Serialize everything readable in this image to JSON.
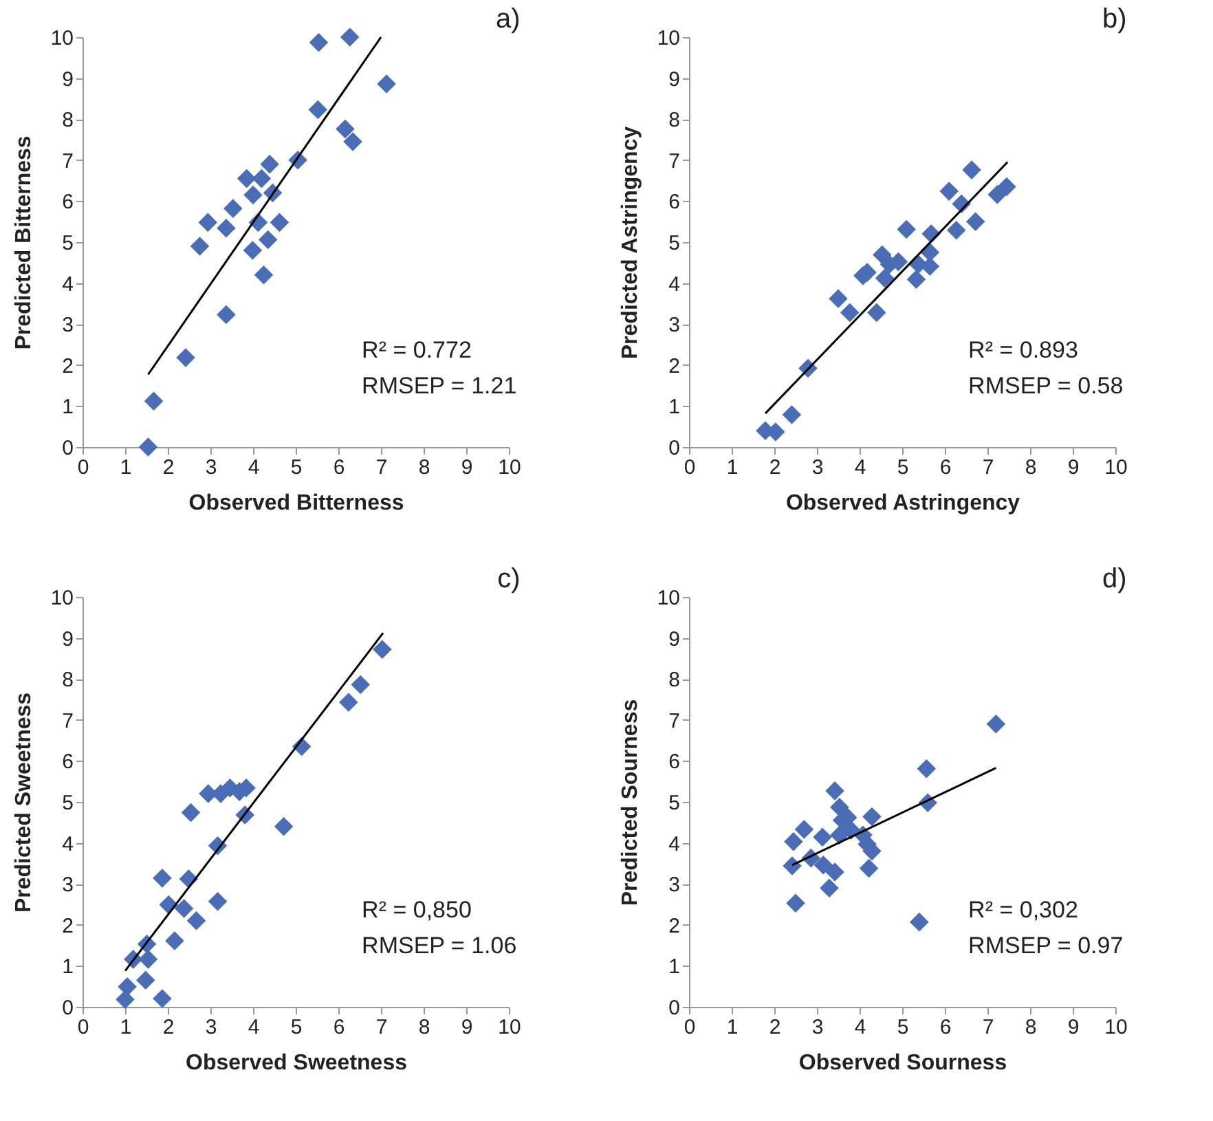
{
  "chart_data": [
    {
      "type": "scatter",
      "title": "a)",
      "xlabel": "Observed Bitterness",
      "ylabel": "Predicted Bitterness",
      "xlim": [
        0,
        10
      ],
      "xticks": [
        0,
        1,
        2,
        3,
        4,
        5,
        6,
        7,
        8,
        9,
        10
      ],
      "ylim": [
        0,
        10
      ],
      "yticks": [
        0,
        1,
        2,
        3,
        4,
        5,
        6,
        7,
        8,
        9,
        10
      ],
      "marker": "diamond",
      "grid": false,
      "series": [
        {
          "color": "#4a6db5",
          "x": [
            1.54,
            1.67,
            2.42,
            3.37,
            2.75,
            2.94,
            3.37,
            3.53,
            3.99,
            4.25,
            3.85,
            4.0,
            4.2,
            4.46,
            4.39,
            4.12,
            4.62,
            4.35,
            5.05,
            5.54,
            5.52,
            6.16,
            6.34,
            6.27,
            7.13
          ],
          "values": [
            0,
            1.12,
            2.18,
            3.23,
            4.9,
            5.48,
            5.34,
            5.82,
            4.8,
            4.2,
            6.55,
            6.15,
            6.55,
            6.2,
            6.9,
            5.48,
            5.48,
            5.06,
            7.0,
            9.87,
            8.23,
            7.76,
            7.45,
            10.0,
            8.86
          ]
        },
        {
          "type": "line",
          "color": "#000000",
          "marker": "none",
          "x": [
            1.54,
            7.0
          ],
          "values": [
            1.77,
            10.0
          ]
        }
      ],
      "annotations": [
        "R² = 0.772",
        "RMSEP = 1.21"
      ]
    },
    {
      "type": "scatter",
      "title": "b)",
      "xlabel": "Observed Astringency",
      "ylabel": "Predicted Astringency",
      "xlim": [
        0,
        10
      ],
      "xticks": [
        0,
        1,
        2,
        3,
        4,
        5,
        6,
        7,
        8,
        9,
        10
      ],
      "ylim": [
        0,
        10
      ],
      "yticks": [
        0,
        1,
        2,
        3,
        4,
        5,
        6,
        7,
        8,
        9,
        10
      ],
      "marker": "diamond",
      "grid": false,
      "series": [
        {
          "color": "#4a6db5",
          "x": [
            1.79,
            2.03,
            2.41,
            2.79,
            3.5,
            3.77,
            4.08,
            4.18,
            4.4,
            4.53,
            4.59,
            4.7,
            4.91,
            5.1,
            5.33,
            5.38,
            5.65,
            5.68,
            5.65,
            6.1,
            6.27,
            6.39,
            6.63,
            6.72,
            7.23,
            7.45
          ],
          "values": [
            0.4,
            0.37,
            0.79,
            1.92,
            3.62,
            3.28,
            4.18,
            4.26,
            3.28,
            4.69,
            4.12,
            4.46,
            4.52,
            5.31,
            4.09,
            4.46,
            4.41,
            5.2,
            4.75,
            6.24,
            5.29,
            5.93,
            6.76,
            5.5,
            6.16,
            6.35
          ]
        },
        {
          "type": "line",
          "color": "#000000",
          "marker": "none",
          "x": [
            1.79,
            7.47
          ],
          "values": [
            0.82,
            6.95
          ]
        }
      ],
      "annotations": [
        "R² = 0.893",
        "RMSEP = 0.58"
      ]
    },
    {
      "type": "scatter",
      "title": "c)",
      "xlabel": "Observed Sweetness",
      "ylabel": "Predicted Sweetness",
      "xlim": [
        0,
        10
      ],
      "xticks": [
        0,
        1,
        2,
        3,
        4,
        5,
        6,
        7,
        8,
        9,
        10
      ],
      "ylim": [
        0,
        10
      ],
      "yticks": [
        0,
        1,
        2,
        3,
        4,
        5,
        6,
        7,
        8,
        9,
        10
      ],
      "marker": "diamond",
      "grid": false,
      "series": [
        {
          "color": "#4a6db5",
          "x": [
            1.0,
            1.05,
            1.87,
            1.48,
            1.19,
            1.54,
            1.51,
            2.16,
            2.02,
            1.87,
            2.38,
            2.67,
            2.49,
            2.54,
            3.17,
            3.17,
            2.95,
            3.24,
            3.46,
            3.68,
            3.84,
            3.81,
            4.72,
            5.14,
            6.24,
            6.52,
            7.03
          ],
          "values": [
            0.18,
            0.49,
            0.2,
            0.65,
            1.16,
            1.16,
            1.53,
            1.61,
            2.49,
            3.14,
            2.4,
            2.1,
            3.12,
            4.74,
            2.57,
            3.93,
            5.2,
            5.2,
            5.34,
            5.25,
            5.34,
            4.68,
            4.4,
            6.35,
            7.43,
            7.86,
            8.72
          ]
        },
        {
          "type": "line",
          "color": "#000000",
          "marker": "none",
          "x": [
            1.0,
            7.05
          ],
          "values": [
            0.88,
            9.12
          ]
        }
      ],
      "annotations": [
        "R² = 0,850",
        "RMSEP = 1.06"
      ]
    },
    {
      "type": "scatter",
      "title": "d)",
      "xlabel": "Observed Sourness",
      "ylabel": "Predicted Sourness",
      "xlim": [
        0,
        10
      ],
      "xticks": [
        0,
        1,
        2,
        3,
        4,
        5,
        6,
        7,
        8,
        9,
        10
      ],
      "ylim": [
        0,
        10
      ],
      "yticks": [
        0,
        1,
        2,
        3,
        4,
        5,
        6,
        7,
        8,
        9,
        10
      ],
      "marker": "diamond",
      "grid": false,
      "series": [
        {
          "color": "#4a6db5",
          "x": [
            2.42,
            2.45,
            2.5,
            2.7,
            2.86,
            3.15,
            3.13,
            3.29,
            3.42,
            3.42,
            3.53,
            3.59,
            3.72,
            3.53,
            3.8,
            4.08,
            4.22,
            4.29,
            4.29,
            4.18,
            5.4,
            5.57,
            5.6,
            7.2
          ],
          "values": [
            3.44,
            4.03,
            2.53,
            4.33,
            3.63,
            3.46,
            4.14,
            2.9,
            3.29,
            5.27,
            4.87,
            4.55,
            4.62,
            4.19,
            4.31,
            4.19,
            3.38,
            4.64,
            3.8,
            3.97,
            2.07,
            5.81,
            4.98,
            6.9
          ]
        },
        {
          "type": "line",
          "color": "#000000",
          "marker": "none",
          "x": [
            2.42,
            7.2
          ],
          "values": [
            3.46,
            5.83
          ]
        }
      ],
      "annotations": [
        "R² = 0,302",
        "RMSEP = 0.97"
      ]
    }
  ]
}
